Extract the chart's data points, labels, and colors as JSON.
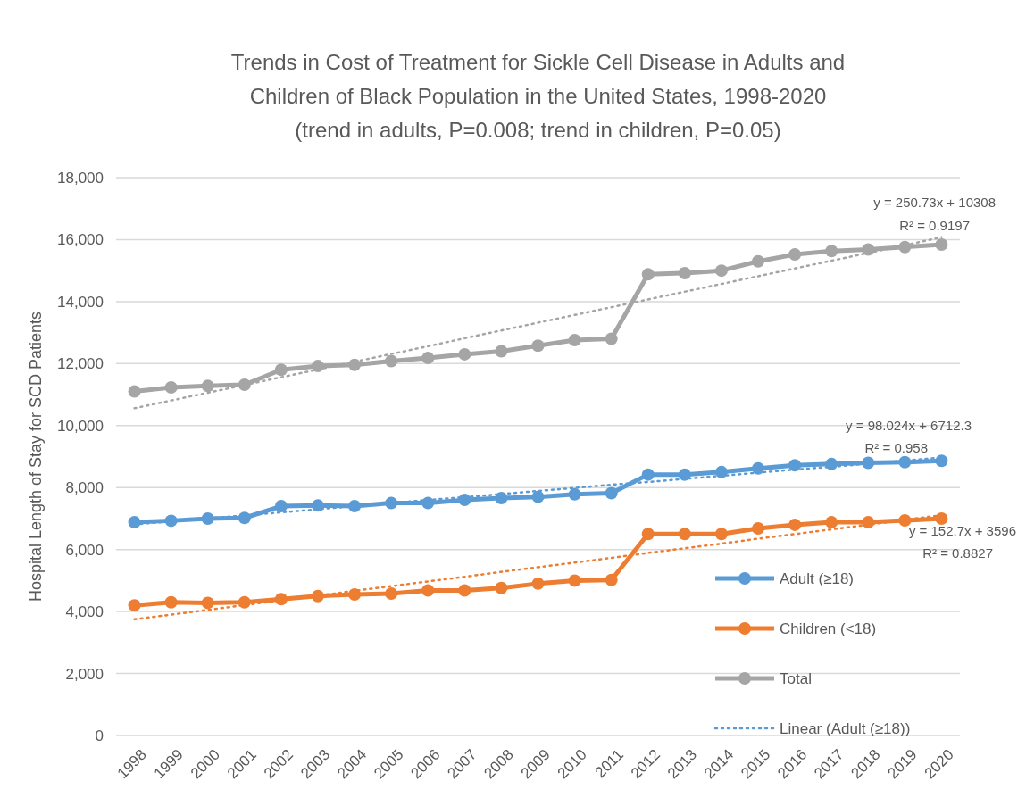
{
  "chart_data": {
    "type": "line",
    "title": "Trends in Cost of Treatment for Sickle Cell Disease in Adults and Children of Black Population in the United States, 1998-2020 (trend in adults, P=0.008; trend in children, P=0.05)",
    "ylabel": "Hospital Length of Stay for SCD Patients",
    "categories": [
      "1998",
      "1999",
      "2000",
      "2001",
      "2002",
      "2003",
      "2004",
      "2005",
      "2006",
      "2007",
      "2008",
      "2009",
      "2010",
      "2011",
      "2012",
      "2013",
      "2014",
      "2015",
      "2016",
      "2017",
      "2018",
      "2019",
      "2020"
    ],
    "ylim": [
      0,
      18000
    ],
    "yticks": [
      {
        "value": 0,
        "label": "0"
      },
      {
        "value": 2000,
        "label": "2,000"
      },
      {
        "value": 4000,
        "label": "4,000"
      },
      {
        "value": 6000,
        "label": "6,000"
      },
      {
        "value": 8000,
        "label": "8,000"
      },
      {
        "value": 10000,
        "label": "10,000"
      },
      {
        "value": 12000,
        "label": "12,000"
      },
      {
        "value": 14000,
        "label": "14,000"
      },
      {
        "value": 16000,
        "label": "16,000"
      },
      {
        "value": 18000,
        "label": "18,000"
      }
    ],
    "grid": "y",
    "legend": "right",
    "marker": "circle",
    "line_style": "solid",
    "series": [
      {
        "name": "Adult (≥18)",
        "color": "#5b9bd5",
        "values": [
          6880,
          6930,
          7000,
          7020,
          7400,
          7420,
          7400,
          7500,
          7500,
          7600,
          7660,
          7700,
          7780,
          7820,
          8420,
          8420,
          8500,
          8620,
          8720,
          8760,
          8800,
          8820,
          8860
        ]
      },
      {
        "name": "Children (<18)",
        "color": "#ed7d31",
        "values": [
          4200,
          4300,
          4280,
          4300,
          4400,
          4500,
          4550,
          4580,
          4680,
          4680,
          4760,
          4900,
          5000,
          5020,
          6500,
          6500,
          6500,
          6680,
          6800,
          6880,
          6880,
          6940,
          7000
        ]
      },
      {
        "name": "Total",
        "color": "#a5a5a5",
        "values": [
          11100,
          11230,
          11280,
          11320,
          11800,
          11920,
          11960,
          12080,
          12180,
          12300,
          12400,
          12580,
          12760,
          12800,
          14880,
          14920,
          15000,
          15300,
          15520,
          15630,
          15680,
          15760,
          15840
        ]
      },
      {
        "name": "Linear (Adult (≥18))",
        "type": "line",
        "color": "#5b9bd5",
        "values": [
          6810,
          6910,
          7010,
          7100,
          7200,
          7300,
          7400,
          7500,
          7600,
          7690,
          7790,
          7890,
          7990,
          8090,
          8180,
          8280,
          8380,
          8480,
          8580,
          8670,
          8770,
          8870,
          8970
        ],
        "marker": "none",
        "line_style": "dotted"
      },
      {
        "type": "line",
        "color": "#ed7d31",
        "values": [
          3750,
          3900,
          4050,
          4210,
          4360,
          4510,
          4670,
          4820,
          4970,
          5120,
          5280,
          5430,
          5580,
          5730,
          5890,
          6040,
          6190,
          6350,
          6500,
          6650,
          6800,
          6960,
          7110
        ],
        "marker": "none",
        "line_style": "dotted"
      },
      {
        "type": "line",
        "color": "#a5a5a5",
        "values": [
          10560,
          10810,
          11060,
          11310,
          11560,
          11810,
          12060,
          12310,
          12560,
          12820,
          13070,
          13320,
          13570,
          13820,
          14070,
          14320,
          14570,
          14820,
          15070,
          15320,
          15570,
          15820,
          16080
        ],
        "marker": "none",
        "line_style": "dotted"
      }
    ],
    "annotations": [
      "y = 250.73x + 10308",
      "R² = 0.9197",
      "y = 98.024x + 6712.3",
      "R² = 0.958",
      "y = 152.7x + 3596",
      "R² = 0.8827"
    ]
  }
}
